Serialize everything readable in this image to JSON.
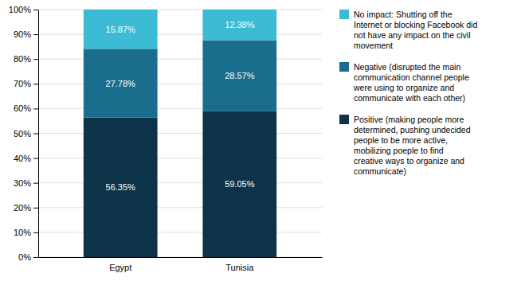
{
  "chart_data": {
    "type": "bar",
    "stacked": true,
    "categories": [
      "Egypt",
      "Tunisia"
    ],
    "series": [
      {
        "name": "Positive (making people more\ndetermined, pushing undecided\npeople to be more active,\nmobilizing poeple to find\ncreative ways to organize and\ncommunicate)",
        "color": "#0d3349",
        "values": [
          56.35,
          59.05
        ],
        "value_labels": [
          "56.35%",
          "59.05%"
        ]
      },
      {
        "name": "Negative (disrupted the main\ncommunication channel people\nwere using to organize and\ncommunicate with each other)",
        "color": "#1b6d8e",
        "values": [
          27.78,
          28.57
        ],
        "value_labels": [
          "27.78%",
          "28.57%"
        ]
      },
      {
        "name": "No impact: Shutting off the\nInternet or blocking Facebook did\nnot have any impact on the civil\nmovement",
        "color": "#3bbcd4",
        "values": [
          15.87,
          12.38
        ],
        "value_labels": [
          "15.87%",
          "12.38%"
        ]
      }
    ],
    "ylim": [
      0,
      100
    ],
    "yticks": [
      {
        "value": 0,
        "label": "0%"
      },
      {
        "value": 10,
        "label": "10%"
      },
      {
        "value": 20,
        "label": "20%"
      },
      {
        "value": 30,
        "label": "30%"
      },
      {
        "value": 40,
        "label": "40%"
      },
      {
        "value": 50,
        "label": "50%"
      },
      {
        "value": 60,
        "label": "60%"
      },
      {
        "value": 70,
        "label": "70%"
      },
      {
        "value": 80,
        "label": "80%"
      },
      {
        "value": 90,
        "label": "90%"
      },
      {
        "value": 100,
        "label": "100%"
      }
    ],
    "grid": true,
    "data_labels": true,
    "legend": "right"
  }
}
